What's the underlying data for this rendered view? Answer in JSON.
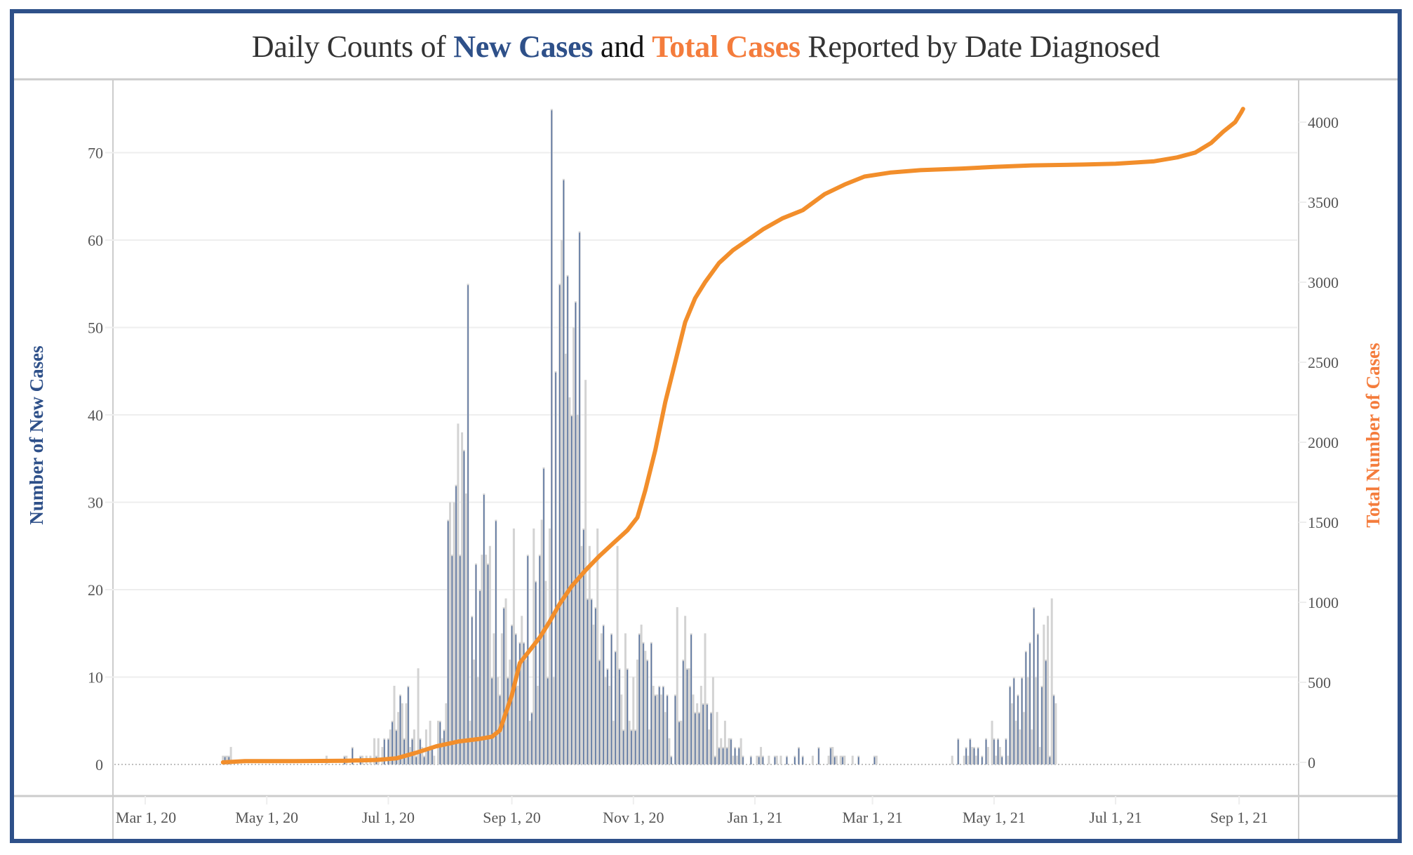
{
  "title": {
    "part1": "Daily Counts of ",
    "part2": "New Cases",
    "part3": " and ",
    "part4": "Total Cases",
    "part5": " Reported by Date Diagnosed"
  },
  "colors": {
    "frame": "#2e5089",
    "new_cases_bar": "#5a74a0",
    "bar_gray": "#d3d3d3",
    "total_line": "#f28e2b",
    "title_orange": "#f47c3c",
    "title_blue": "#2e5089"
  },
  "chart_data": {
    "type": "bar+line",
    "title": "Daily Counts of New Cases and Total Cases Reported by Date Diagnosed",
    "xlabel": "",
    "ylabel_left": "Number of New Cases",
    "ylabel_right": "Total Number of Cases",
    "x_start_date": "2020-04-09",
    "x_range": [
      "2020-03-01",
      "2021-09-30"
    ],
    "x_ticks": [
      "Mar 1, 20",
      "May 1, 20",
      "Jul 1, 20",
      "Sep 1, 20",
      "Nov 1, 20",
      "Jan 1, 21",
      "Mar 1, 21",
      "May 1, 21",
      "Jul 1, 21",
      "Sep 1, 21"
    ],
    "x_tick_dates": [
      "2020-03-01",
      "2020-05-01",
      "2020-07-01",
      "2020-09-01",
      "2020-11-01",
      "2021-01-01",
      "2021-03-01",
      "2021-05-01",
      "2021-07-01",
      "2021-09-01"
    ],
    "y_left_ticks": [
      0,
      10,
      20,
      30,
      40,
      50,
      60,
      70
    ],
    "y_left_range": [
      0,
      77
    ],
    "y_right_ticks": [
      0,
      500,
      1000,
      1500,
      2000,
      2500,
      3000,
      3500,
      4000
    ],
    "y_right_range": [
      0,
      4200
    ],
    "grid": true,
    "series": [
      {
        "name": "New Cases",
        "axis": "left",
        "type": "bar",
        "values": [
          1,
          1,
          1,
          1,
          2,
          0,
          0,
          0,
          0,
          0,
          0,
          0,
          0,
          0,
          0,
          0,
          0,
          0,
          0,
          0,
          0,
          0,
          0,
          0,
          0,
          0,
          0,
          0,
          0,
          0,
          0,
          0,
          0,
          0,
          0,
          0,
          0,
          0,
          0,
          0,
          0,
          0,
          0,
          0,
          0,
          0,
          0,
          0,
          0,
          0,
          0,
          0,
          1,
          0,
          0,
          0,
          0,
          0,
          0,
          0,
          0,
          1,
          1,
          0,
          0,
          2,
          0,
          0,
          0,
          1,
          1,
          0,
          1,
          0,
          1,
          0,
          3,
          1,
          3,
          0,
          2,
          3,
          0,
          3,
          4,
          5,
          9,
          4,
          6,
          8,
          7,
          3,
          7,
          9,
          2,
          3,
          4,
          1,
          11,
          3,
          2,
          1,
          4,
          2,
          5,
          2,
          1,
          0,
          5,
          5,
          3,
          4,
          7,
          28,
          30,
          24,
          30,
          32,
          39,
          24,
          38,
          36,
          31,
          55,
          5,
          17,
          12,
          23,
          10,
          20,
          24,
          31,
          24,
          23,
          25,
          10,
          15,
          28,
          10,
          8,
          15,
          18,
          19,
          10,
          12,
          16,
          27,
          15,
          9,
          14,
          17,
          14,
          12,
          24,
          5,
          6,
          27,
          21,
          9,
          24,
          28,
          34,
          21,
          10,
          27,
          75,
          10,
          45,
          18,
          55,
          60,
          67,
          47,
          56,
          42,
          40,
          50,
          53,
          40,
          61,
          25,
          27,
          44,
          19,
          25,
          19,
          16,
          18,
          27,
          12,
          15,
          16,
          10,
          11,
          9,
          15,
          5,
          13,
          25,
          11,
          8,
          4,
          15,
          11,
          5,
          4,
          10,
          4,
          12,
          15,
          16,
          14,
          13,
          12,
          4,
          14,
          9,
          8,
          8,
          9,
          8,
          9,
          6,
          8,
          3,
          1,
          0,
          8,
          18,
          5,
          5,
          12,
          17,
          11,
          11,
          15,
          8,
          6,
          7,
          6,
          9,
          7,
          15,
          7,
          4,
          6,
          10,
          1,
          6,
          2,
          3,
          2,
          5,
          2,
          3,
          3,
          1,
          2,
          1,
          2,
          3,
          1,
          0,
          0,
          0,
          1,
          0,
          0,
          1,
          1,
          2,
          1,
          0,
          0,
          1,
          0,
          0,
          1,
          1,
          0,
          1,
          0,
          0,
          1,
          0,
          0,
          0,
          1,
          0,
          2,
          0,
          1,
          0,
          0,
          0,
          0,
          1,
          0,
          0,
          2,
          0,
          0,
          0,
          0,
          1,
          2,
          2,
          1,
          1,
          0,
          1,
          1,
          1,
          0,
          0,
          0,
          1,
          0,
          0,
          1,
          0,
          0,
          0,
          0,
          0,
          0,
          0,
          1,
          1,
          0,
          0,
          0,
          0,
          0,
          0,
          0,
          0,
          0,
          0,
          0,
          0,
          0,
          0,
          0,
          0,
          0,
          0,
          0,
          0,
          0,
          0,
          0,
          0,
          0,
          0,
          0,
          0,
          0,
          0,
          0,
          0,
          0,
          0,
          0,
          0,
          0,
          1,
          0,
          0,
          3,
          0,
          0,
          1,
          2,
          1,
          3,
          2,
          2,
          1,
          2,
          0,
          1,
          0,
          3,
          2,
          0,
          5,
          3,
          1,
          3,
          2,
          1,
          0,
          3,
          1,
          9,
          7,
          10,
          5,
          8,
          4,
          10,
          6,
          13,
          10,
          14,
          4,
          18,
          10,
          15,
          2,
          9,
          16,
          12,
          17,
          1,
          19,
          8,
          7,
          0
        ]
      },
      {
        "name": "Total Cases",
        "axis": "right",
        "type": "line",
        "points": [
          [
            "2020-04-09",
            0
          ],
          [
            "2020-04-20",
            8
          ],
          [
            "2020-05-15",
            8
          ],
          [
            "2020-06-10",
            10
          ],
          [
            "2020-06-25",
            15
          ],
          [
            "2020-07-05",
            25
          ],
          [
            "2020-07-15",
            60
          ],
          [
            "2020-07-25",
            100
          ],
          [
            "2020-08-05",
            130
          ],
          [
            "2020-08-15",
            145
          ],
          [
            "2020-08-22",
            160
          ],
          [
            "2020-08-26",
            200
          ],
          [
            "2020-09-01",
            420
          ],
          [
            "2020-09-05",
            620
          ],
          [
            "2020-09-10",
            700
          ],
          [
            "2020-09-15",
            780
          ],
          [
            "2020-09-20",
            880
          ],
          [
            "2020-09-25",
            990
          ],
          [
            "2020-10-01",
            1100
          ],
          [
            "2020-10-08",
            1200
          ],
          [
            "2020-10-15",
            1290
          ],
          [
            "2020-10-22",
            1370
          ],
          [
            "2020-10-29",
            1450
          ],
          [
            "2020-11-03",
            1530
          ],
          [
            "2020-11-07",
            1700
          ],
          [
            "2020-11-12",
            1950
          ],
          [
            "2020-11-17",
            2250
          ],
          [
            "2020-11-22",
            2500
          ],
          [
            "2020-11-27",
            2750
          ],
          [
            "2020-12-02",
            2900
          ],
          [
            "2020-12-07",
            3000
          ],
          [
            "2020-12-14",
            3120
          ],
          [
            "2020-12-21",
            3200
          ],
          [
            "2020-12-28",
            3260
          ],
          [
            "2021-01-05",
            3330
          ],
          [
            "2021-01-15",
            3400
          ],
          [
            "2021-01-25",
            3450
          ],
          [
            "2021-02-05",
            3550
          ],
          [
            "2021-02-15",
            3610
          ],
          [
            "2021-02-25",
            3660
          ],
          [
            "2021-03-10",
            3685
          ],
          [
            "2021-03-25",
            3700
          ],
          [
            "2021-04-15",
            3710
          ],
          [
            "2021-05-01",
            3720
          ],
          [
            "2021-05-20",
            3730
          ],
          [
            "2021-06-15",
            3735
          ],
          [
            "2021-07-01",
            3740
          ],
          [
            "2021-07-20",
            3755
          ],
          [
            "2021-08-01",
            3780
          ],
          [
            "2021-08-10",
            3810
          ],
          [
            "2021-08-18",
            3870
          ],
          [
            "2021-08-24",
            3940
          ],
          [
            "2021-08-30",
            4000
          ],
          [
            "2021-09-02",
            4060
          ],
          [
            "2021-09-03",
            4083
          ]
        ]
      }
    ]
  }
}
